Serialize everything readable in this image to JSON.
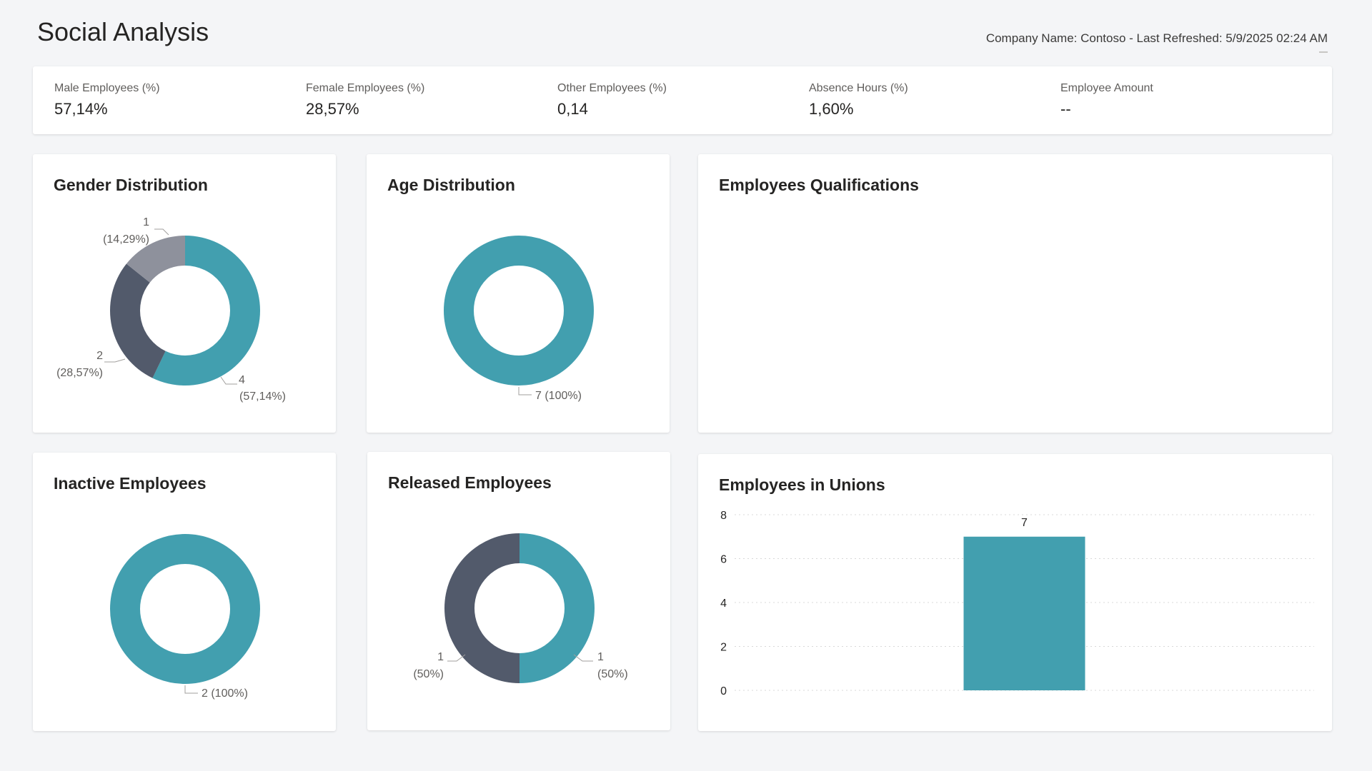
{
  "page": {
    "title": "Social Analysis",
    "refresh_info": "Company Name: Contoso - Last Refreshed: 5/9/2025 02:24 AM"
  },
  "kpis": [
    {
      "label": "Male Employees (%)",
      "value": "57,14%"
    },
    {
      "label": "Female Employees (%)",
      "value": "28,57%"
    },
    {
      "label": "Other Employees (%)",
      "value": "0,14"
    },
    {
      "label": "Absence Hours (%)",
      "value": "1,60%"
    },
    {
      "label": "Employee Amount",
      "value": "--"
    }
  ],
  "cards": {
    "gender": "Gender Distribution",
    "age": "Age Distribution",
    "qualifications": "Employees Qualifications",
    "inactive": "Inactive Employees",
    "released": "Released Employees",
    "unions": "Employees in Unions"
  },
  "colors": {
    "teal": "#429faf",
    "slate": "#525a6b",
    "gray": "#8e919c"
  },
  "chart_data": [
    {
      "type": "pie",
      "title": "Gender Distribution",
      "values": [
        4,
        2,
        1
      ],
      "labels": [
        [
          "4",
          "(57,14%)"
        ],
        [
          "2",
          "(28,57%)"
        ],
        [
          "1",
          "(14,29%)"
        ]
      ],
      "colors": [
        "#429faf",
        "#525a6b",
        "#8e919c"
      ]
    },
    {
      "type": "pie",
      "title": "Age Distribution",
      "values": [
        7
      ],
      "labels": [
        [
          "7 (100%)"
        ]
      ],
      "colors": [
        "#429faf"
      ]
    },
    {
      "type": "pie",
      "title": "Inactive Employees",
      "values": [
        2
      ],
      "labels": [
        [
          "2 (100%)"
        ]
      ],
      "colors": [
        "#429faf"
      ]
    },
    {
      "type": "pie",
      "title": "Released Employees",
      "values": [
        1,
        1
      ],
      "labels": [
        [
          "1",
          "(50%)"
        ],
        [
          "1",
          "(50%)"
        ]
      ],
      "colors": [
        "#429faf",
        "#525a6b"
      ]
    },
    {
      "type": "bar",
      "title": "Employees in Unions",
      "categories": [
        ""
      ],
      "values": [
        7
      ],
      "ylim": [
        0,
        8
      ],
      "yticks": [
        0,
        2,
        4,
        6,
        8
      ],
      "data_labels": [
        "7"
      ],
      "grid": true,
      "color": "#429faf"
    }
  ]
}
